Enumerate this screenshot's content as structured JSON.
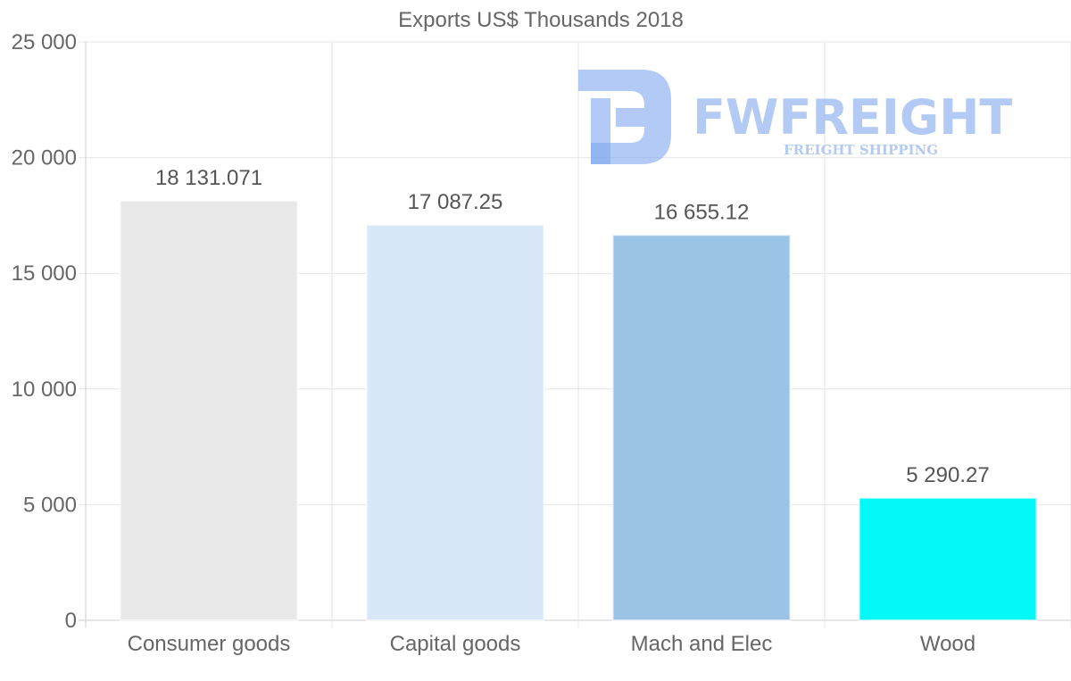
{
  "chart_data": {
    "type": "bar",
    "title": "Exports US$ Thousands 2018",
    "categories": [
      "Consumer goods",
      "Capital goods",
      "Mach and Elec",
      "Wood"
    ],
    "values": [
      18131.071,
      17087.25,
      16655.12,
      5290.27
    ],
    "value_labels": [
      "18 131.071",
      "17 087.25",
      "16 655.12",
      "5 290.27"
    ],
    "colors": [
      "#e8e8e8",
      "#d8e8f9",
      "#9bc3e6",
      "#05f8f8"
    ],
    "ylim": [
      0,
      25000
    ],
    "yticks": [
      0,
      5000,
      10000,
      15000,
      20000,
      25000
    ],
    "ytick_labels": [
      "0",
      "5 000",
      "10 000",
      "15 000",
      "20 000",
      "25 000"
    ],
    "xlabel": "",
    "ylabel": "",
    "grid": true,
    "legend": "none"
  },
  "watermark": {
    "brand": "FWFREIGHT",
    "tagline": "FREIGHT SHIPPING",
    "color": "#7fa7ee"
  }
}
